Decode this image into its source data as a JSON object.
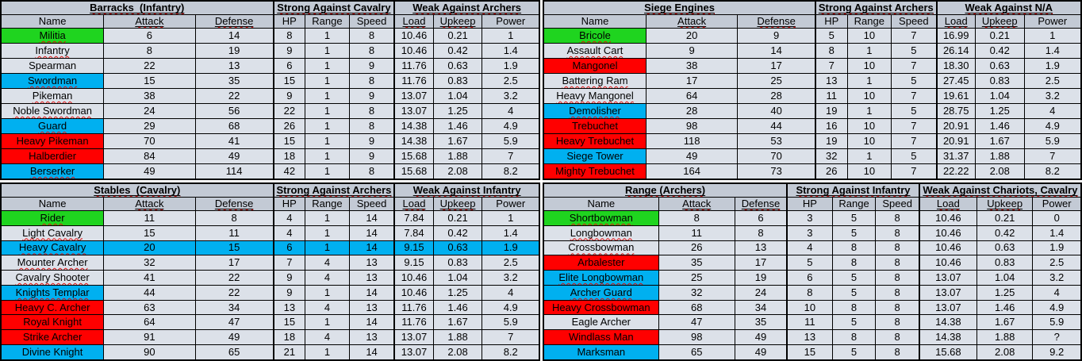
{
  "colors": {
    "green_highlight": "#1FD41F",
    "blue_highlight": "#00B0F0",
    "red_highlight": "#FF0000",
    "header_bg": "#C3CAD5",
    "cell_bg": "#DCE1E9",
    "border": "#000000",
    "squiggle": "#DD1111",
    "text": "#000000",
    "page_bg": "#FFFFFF"
  },
  "columns": [
    {
      "label": "Name",
      "underlined": false
    },
    {
      "label": "Attack",
      "underlined": true
    },
    {
      "label": "Defense",
      "underlined": true
    },
    {
      "label": "HP",
      "underlined": false
    },
    {
      "label": "Range",
      "underlined": false
    },
    {
      "label": "Speed",
      "underlined": false
    },
    {
      "label": "Load",
      "underlined": true
    },
    {
      "label": "Upkeep",
      "underlined": true
    },
    {
      "label": "Power",
      "underlined": false
    }
  ],
  "tables": [
    {
      "id": "barracks",
      "title": "Barracks  (Infantry)",
      "strong": "Strong Against Cavalry",
      "weak": "Weak Against Archers",
      "rows": [
        {
          "name": "Militia",
          "highlight": "green",
          "full_row": false,
          "squiggle": true,
          "stats": [
            "6",
            "14",
            "8",
            "1",
            "8",
            "10.46",
            "0.21",
            "1"
          ]
        },
        {
          "name": "Infantry",
          "highlight": null,
          "full_row": false,
          "squiggle": true,
          "stats": [
            "8",
            "19",
            "9",
            "1",
            "8",
            "10.46",
            "0.42",
            "1.4"
          ]
        },
        {
          "name": "Spearman",
          "highlight": null,
          "full_row": false,
          "squiggle": false,
          "stats": [
            "22",
            "13",
            "6",
            "1",
            "9",
            "11.76",
            "0.63",
            "1.9"
          ]
        },
        {
          "name": "Swordman",
          "highlight": "blue",
          "full_row": false,
          "squiggle": true,
          "stats": [
            "15",
            "35",
            "15",
            "1",
            "8",
            "11.76",
            "0.83",
            "2.5"
          ]
        },
        {
          "name": "Pikeman",
          "highlight": null,
          "full_row": false,
          "squiggle": true,
          "stats": [
            "38",
            "22",
            "9",
            "1",
            "9",
            "13.07",
            "1.04",
            "3.2"
          ]
        },
        {
          "name": "Noble Swordman",
          "highlight": null,
          "full_row": false,
          "squiggle": true,
          "stats": [
            "24",
            "56",
            "22",
            "1",
            "8",
            "13.07",
            "1.25",
            "4"
          ]
        },
        {
          "name": "Guard",
          "highlight": "blue",
          "full_row": false,
          "squiggle": true,
          "stats": [
            "29",
            "68",
            "26",
            "1",
            "8",
            "14.38",
            "1.46",
            "4.9"
          ]
        },
        {
          "name": "Heavy Pikeman",
          "highlight": "red",
          "full_row": false,
          "squiggle": false,
          "stats": [
            "70",
            "41",
            "15",
            "1",
            "9",
            "14.38",
            "1.67",
            "5.9"
          ]
        },
        {
          "name": "Halberdier",
          "highlight": "red",
          "full_row": false,
          "squiggle": false,
          "stats": [
            "84",
            "49",
            "18",
            "1",
            "9",
            "15.68",
            "1.88",
            "7"
          ]
        },
        {
          "name": "Berserker",
          "highlight": "blue",
          "full_row": false,
          "squiggle": true,
          "stats": [
            "49",
            "114",
            "42",
            "1",
            "8",
            "15.68",
            "2.08",
            "8.2"
          ]
        }
      ]
    },
    {
      "id": "siege",
      "title": "Siege Engines",
      "strong": "Strong Against Archers",
      "weak": "Weak Against N/A",
      "rows": [
        {
          "name": "Bricole",
          "highlight": "green",
          "full_row": false,
          "squiggle": true,
          "stats": [
            "20",
            "9",
            "5",
            "10",
            "7",
            "16.99",
            "0.21",
            "1"
          ]
        },
        {
          "name": "Assault Cart",
          "highlight": null,
          "full_row": false,
          "squiggle": true,
          "stats": [
            "9",
            "14",
            "8",
            "1",
            "5",
            "26.14",
            "0.42",
            "1.4"
          ]
        },
        {
          "name": "Mangonel",
          "highlight": "red",
          "full_row": false,
          "squiggle": true,
          "stats": [
            "38",
            "17",
            "7",
            "10",
            "7",
            "18.30",
            "0.63",
            "1.9"
          ]
        },
        {
          "name": "Battering Ram",
          "highlight": null,
          "full_row": false,
          "squiggle": true,
          "stats": [
            "17",
            "25",
            "13",
            "1",
            "5",
            "27.45",
            "0.83",
            "2.5"
          ]
        },
        {
          "name": "Heavy Mangonel",
          "highlight": null,
          "full_row": false,
          "squiggle": true,
          "stats": [
            "64",
            "28",
            "11",
            "10",
            "7",
            "19.61",
            "1.04",
            "3.2"
          ]
        },
        {
          "name": "Demolisher",
          "highlight": "blue",
          "full_row": false,
          "squiggle": true,
          "stats": [
            "28",
            "40",
            "19",
            "1",
            "5",
            "28.75",
            "1.25",
            "4"
          ]
        },
        {
          "name": "Trebuchet",
          "highlight": "red",
          "full_row": false,
          "squiggle": false,
          "stats": [
            "98",
            "44",
            "16",
            "10",
            "7",
            "20.91",
            "1.46",
            "4.9"
          ]
        },
        {
          "name": "Heavy Trebuchet",
          "highlight": "red",
          "full_row": false,
          "squiggle": false,
          "stats": [
            "118",
            "53",
            "19",
            "10",
            "7",
            "20.91",
            "1.67",
            "5.9"
          ]
        },
        {
          "name": "Siege Tower",
          "highlight": "blue",
          "full_row": false,
          "squiggle": false,
          "stats": [
            "49",
            "70",
            "32",
            "1",
            "5",
            "31.37",
            "1.88",
            "7"
          ]
        },
        {
          "name": "Mighty Trebuchet",
          "highlight": "red",
          "full_row": false,
          "squiggle": false,
          "stats": [
            "164",
            "73",
            "26",
            "10",
            "7",
            "22.22",
            "2.08",
            "8.2"
          ]
        }
      ]
    },
    {
      "id": "stables",
      "title": "Stables  (Cavalry)",
      "strong": "Strong Against Archers",
      "weak": "Weak Against Infantry",
      "rows": [
        {
          "name": "Rider",
          "highlight": "green",
          "full_row": false,
          "squiggle": true,
          "stats": [
            "11",
            "8",
            "4",
            "1",
            "14",
            "7.84",
            "0.21",
            "1"
          ]
        },
        {
          "name": "Light Cavalry",
          "highlight": null,
          "full_row": false,
          "squiggle": true,
          "stats": [
            "15",
            "11",
            "4",
            "1",
            "14",
            "7.84",
            "0.42",
            "1.4"
          ]
        },
        {
          "name": "Heavy Cavalry",
          "highlight": "blue",
          "full_row": true,
          "squiggle": true,
          "stats": [
            "20",
            "15",
            "6",
            "1",
            "14",
            "9.15",
            "0.63",
            "1.9"
          ]
        },
        {
          "name": "Mounter Archer",
          "highlight": null,
          "full_row": false,
          "squiggle": true,
          "stats": [
            "32",
            "17",
            "7",
            "4",
            "13",
            "9.15",
            "0.83",
            "2.5"
          ]
        },
        {
          "name": "Cavalry Shooter",
          "highlight": null,
          "full_row": false,
          "squiggle": true,
          "stats": [
            "41",
            "22",
            "9",
            "4",
            "13",
            "10.46",
            "1.04",
            "3.2"
          ]
        },
        {
          "name": "Knights Templar",
          "highlight": "blue",
          "full_row": false,
          "squiggle": true,
          "stats": [
            "44",
            "22",
            "9",
            "1",
            "14",
            "10.46",
            "1.25",
            "4"
          ]
        },
        {
          "name": "Heavy C. Archer",
          "highlight": "red",
          "full_row": false,
          "squiggle": false,
          "stats": [
            "63",
            "34",
            "13",
            "4",
            "13",
            "11.76",
            "1.46",
            "4.9"
          ]
        },
        {
          "name": "Royal Knight",
          "highlight": "red",
          "full_row": false,
          "squiggle": false,
          "stats": [
            "64",
            "47",
            "15",
            "1",
            "14",
            "11.76",
            "1.67",
            "5.9"
          ]
        },
        {
          "name": "Strike Archer",
          "highlight": "red",
          "full_row": false,
          "squiggle": false,
          "stats": [
            "91",
            "49",
            "18",
            "4",
            "13",
            "13.07",
            "1.88",
            "7"
          ]
        },
        {
          "name": "Divine Knight",
          "highlight": "blue",
          "full_row": false,
          "squiggle": false,
          "stats": [
            "90",
            "65",
            "21",
            "1",
            "14",
            "13.07",
            "2.08",
            "8.2"
          ]
        }
      ]
    },
    {
      "id": "range",
      "title": "Range (Archers)",
      "strong": "Strong Against Infantry",
      "weak": "Weak Against Chariots, Cavalry",
      "rows": [
        {
          "name": "Shortbowman",
          "highlight": "green",
          "full_row": false,
          "squiggle": true,
          "stats": [
            "8",
            "6",
            "3",
            "5",
            "8",
            "10.46",
            "0.21",
            "0"
          ]
        },
        {
          "name": "Longbowman",
          "highlight": null,
          "full_row": false,
          "squiggle": true,
          "stats": [
            "11",
            "8",
            "3",
            "5",
            "8",
            "10.46",
            "0.42",
            "1.4"
          ]
        },
        {
          "name": "Crossbowman",
          "highlight": null,
          "full_row": false,
          "squiggle": true,
          "stats": [
            "26",
            "13",
            "4",
            "8",
            "8",
            "10.46",
            "0.63",
            "1.9"
          ]
        },
        {
          "name": "Arbalester",
          "highlight": "red",
          "full_row": false,
          "squiggle": true,
          "stats": [
            "35",
            "17",
            "5",
            "8",
            "8",
            "10.46",
            "0.83",
            "2.5"
          ]
        },
        {
          "name": "Elite Longbowman",
          "highlight": "blue",
          "full_row": false,
          "squiggle": true,
          "stats": [
            "25",
            "19",
            "6",
            "5",
            "8",
            "13.07",
            "1.04",
            "3.2"
          ]
        },
        {
          "name": "Archer Guard",
          "highlight": "blue",
          "full_row": false,
          "squiggle": true,
          "stats": [
            "32",
            "24",
            "8",
            "5",
            "8",
            "13.07",
            "1.25",
            "4"
          ]
        },
        {
          "name": "Heavy Crossbowman",
          "highlight": "red",
          "full_row": false,
          "squiggle": false,
          "stats": [
            "68",
            "34",
            "10",
            "8",
            "8",
            "13.07",
            "1.46",
            "4.9"
          ]
        },
        {
          "name": "Eagle Archer",
          "highlight": null,
          "full_row": false,
          "squiggle": false,
          "stats": [
            "47",
            "35",
            "11",
            "5",
            "8",
            "14.38",
            "1.67",
            "5.9"
          ]
        },
        {
          "name": "Windlass Man",
          "highlight": "red",
          "full_row": false,
          "squiggle": false,
          "stats": [
            "98",
            "49",
            "13",
            "8",
            "8",
            "14.38",
            "1.88",
            "?"
          ]
        },
        {
          "name": "Marksman",
          "highlight": "blue",
          "full_row": false,
          "squiggle": false,
          "stats": [
            "65",
            "49",
            "15",
            "5",
            "8",
            "15.68",
            "2.08",
            "9.2"
          ]
        }
      ]
    }
  ]
}
